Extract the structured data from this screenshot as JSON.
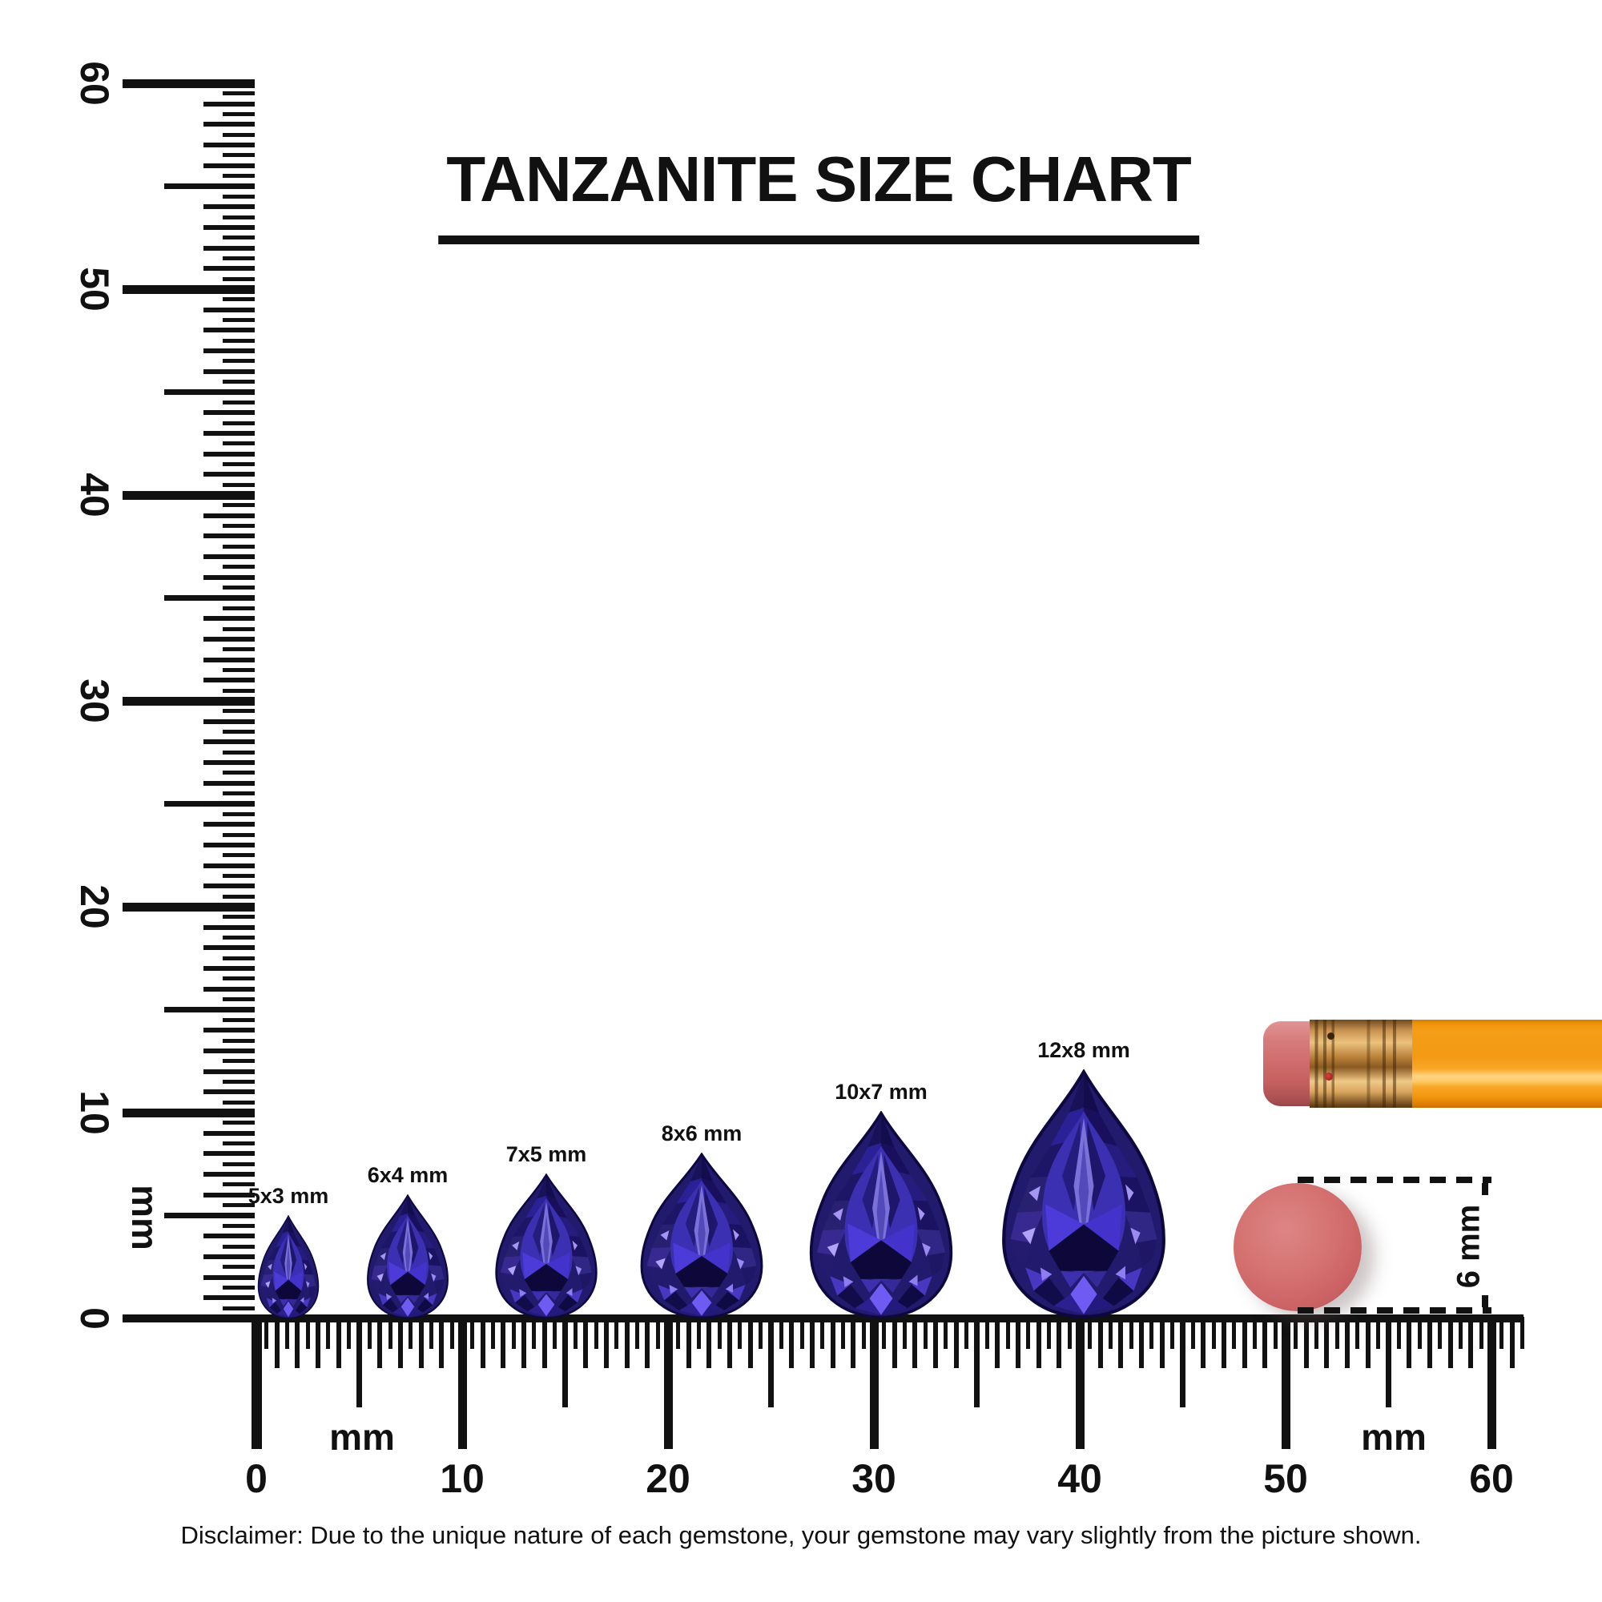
{
  "title": "TANZANITE SIZE CHART",
  "disclaimer": "Disclaimer: Due to the unique nature of each gemstone, your gemstone may vary slightly from the picture shown.",
  "rulers": {
    "vertical": {
      "unit": "mm",
      "numbers": [
        "0",
        "10",
        "20",
        "30",
        "40",
        "50",
        "60"
      ]
    },
    "horizontal": {
      "unit_left": "mm",
      "unit_right": "mm",
      "numbers": [
        "0",
        "10",
        "20",
        "30",
        "40",
        "50",
        "60"
      ]
    }
  },
  "gems": [
    {
      "label": "5x3 mm",
      "length_mm": 5,
      "width_mm": 3
    },
    {
      "label": "6x4 mm",
      "length_mm": 6,
      "width_mm": 4
    },
    {
      "label": "7x5 mm",
      "length_mm": 7,
      "width_mm": 5
    },
    {
      "label": "8x6 mm",
      "length_mm": 8,
      "width_mm": 6
    },
    {
      "label": "10x7 mm",
      "length_mm": 10,
      "width_mm": 7
    },
    {
      "label": "12x8 mm",
      "length_mm": 12,
      "width_mm": 8
    }
  ],
  "eraser_measurement": {
    "label": "6 mm",
    "diameter_mm": 6
  },
  "colors": {
    "background": "#ffffff",
    "ink": "#111111",
    "gem_primary": "#2c21a0",
    "gem_violet": "#6f5af2",
    "eraser_pink": "#d06c6e",
    "pencil_orange": "#f79e1c",
    "ferrule_brass": "#c89150"
  }
}
